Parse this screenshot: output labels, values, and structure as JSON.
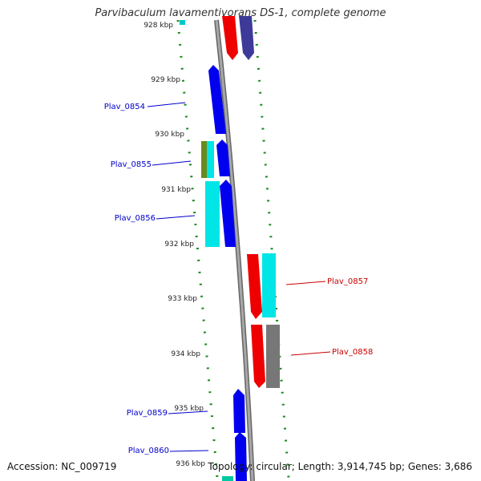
{
  "header": {
    "title": "Parvibaculum lavamentivorans DS-1, complete genome"
  },
  "footer": {
    "accession": "Accession: NC_009719",
    "summary": "Topology: circular; Length: 3,914,745 bp; Genes: 3,686"
  },
  "scale": {
    "ticks": [
      {
        "label": "928 kbp"
      },
      {
        "label": "929 kbp"
      },
      {
        "label": "930 kbp"
      },
      {
        "label": "931 kbp"
      },
      {
        "label": "932 kbp"
      },
      {
        "label": "933 kbp"
      },
      {
        "label": "934 kbp"
      },
      {
        "label": "935 kbp"
      },
      {
        "label": "936 kbp"
      }
    ]
  },
  "genes": [
    {
      "id": "Plav_0854",
      "strand": "reverse",
      "color": "#0000cc"
    },
    {
      "id": "Plav_0855",
      "strand": "reverse",
      "color": "#0000cc"
    },
    {
      "id": "Plav_0856",
      "strand": "reverse",
      "color": "#0000cc"
    },
    {
      "id": "Plav_0857",
      "strand": "forward",
      "color": "#cc0000"
    },
    {
      "id": "Plav_0858",
      "strand": "forward",
      "color": "#cc0000"
    },
    {
      "id": "Plav_0859",
      "strand": "reverse",
      "color": "#0000cc"
    },
    {
      "id": "Plav_0860",
      "strand": "reverse",
      "color": "#0000cc"
    }
  ],
  "colors": {
    "blue": "#0000ee",
    "red": "#ee0000",
    "cyan": "#00e5e5",
    "navy": "#3d3a99",
    "olive": "#6b8a1e",
    "gray": "#777777",
    "teal": "#00c8a0",
    "tick_green": "#1a8a1a",
    "backbone": "#8c8c8c"
  }
}
